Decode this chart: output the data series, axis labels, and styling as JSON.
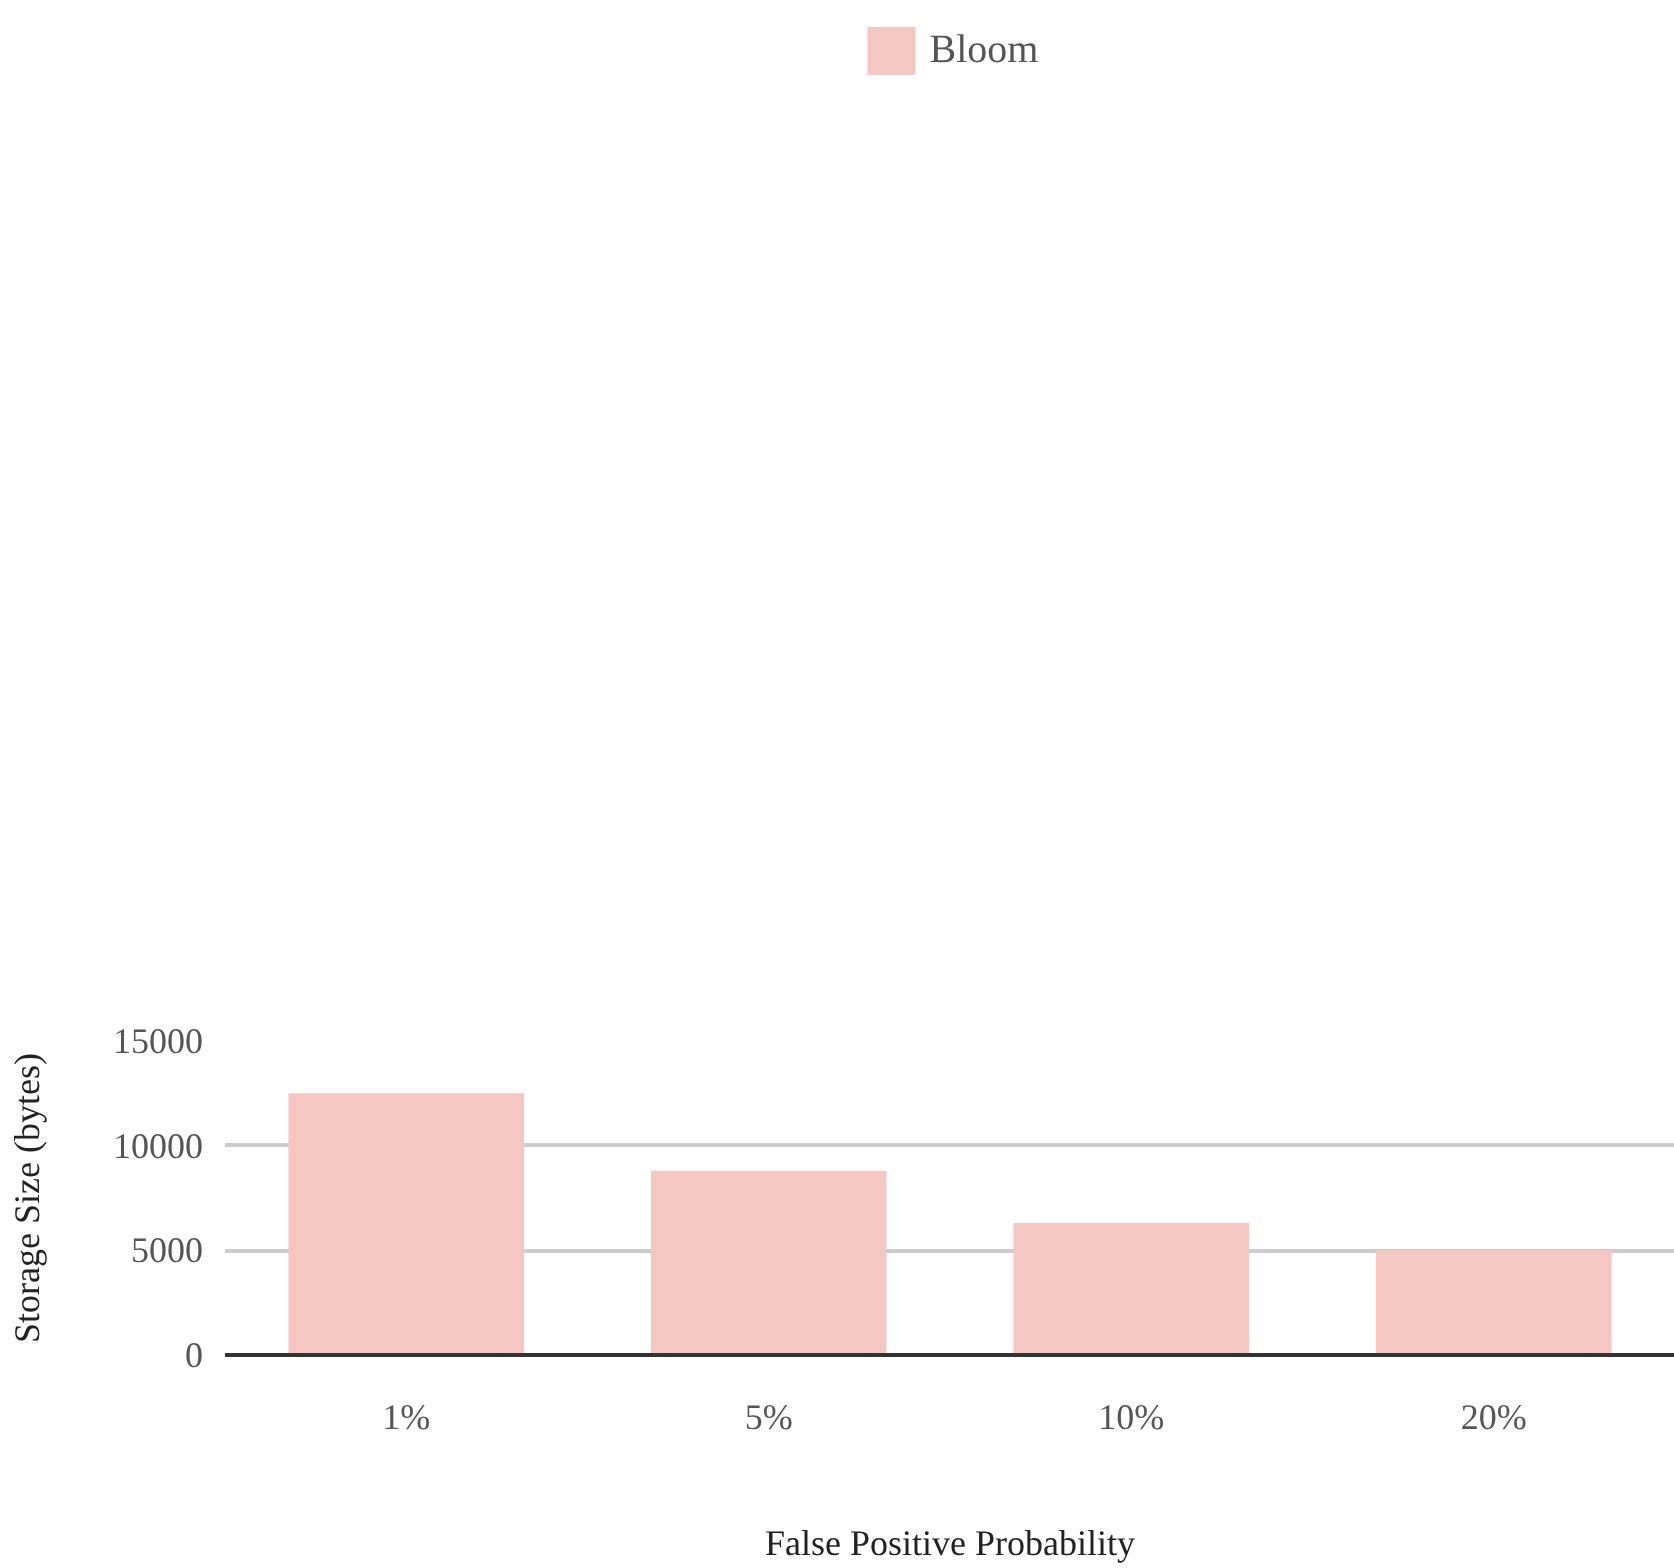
{
  "chart_data": {
    "type": "bar",
    "xlabel": "False Positive Probability",
    "ylabel": "Storage Size (bytes)",
    "categories": [
      "1%",
      "5%",
      "10%",
      "20%"
    ],
    "series": [
      {
        "name": "Bloom",
        "color": "#f4c7c3",
        "values": [
          12500,
          8800,
          6300,
          5000
        ]
      }
    ],
    "ylim": [
      0,
      15000
    ],
    "yticks": [
      0,
      5000,
      10000,
      15000
    ],
    "grid": "y",
    "legend": "top"
  }
}
